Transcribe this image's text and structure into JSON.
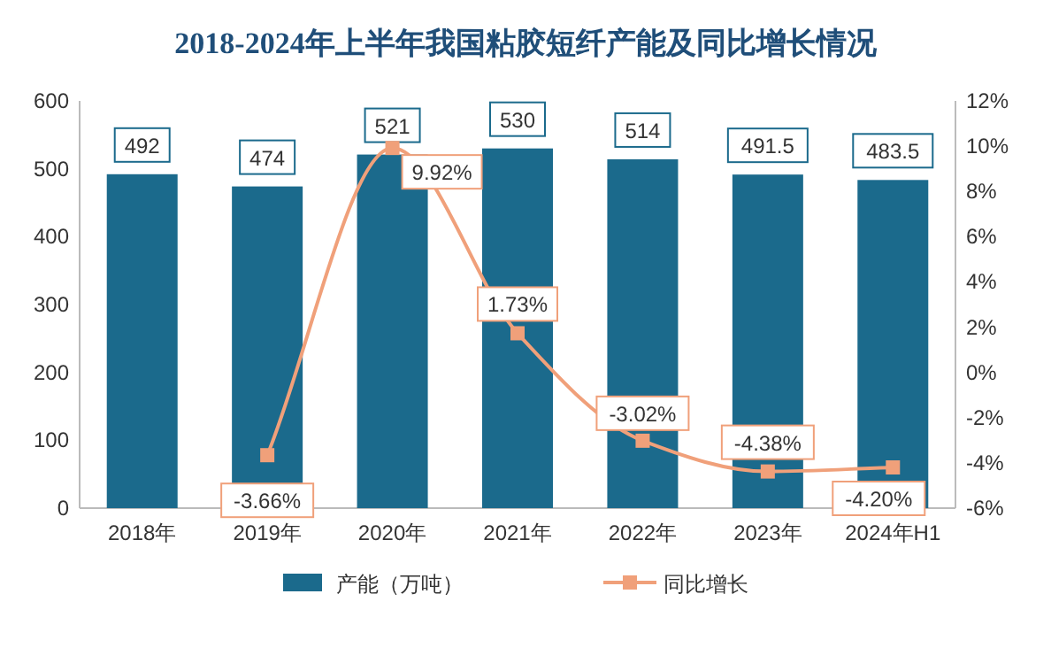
{
  "chart_data": {
    "type": "bar",
    "title": "2018-2024年上半年我国粘胶短纤产能及同比增长情况",
    "categories": [
      "2018年",
      "2019年",
      "2020年",
      "2021年",
      "2022年",
      "2023年",
      "2024年H1"
    ],
    "ylim": [
      0,
      600
    ],
    "yticks": [
      0,
      100,
      200,
      300,
      400,
      500,
      600
    ],
    "y2lim": [
      -6,
      12
    ],
    "y2ticks": [
      {
        "value": -6,
        "label": "-6%"
      },
      {
        "value": -4,
        "label": "-4%"
      },
      {
        "value": -2,
        "label": "-2%"
      },
      {
        "value": 0,
        "label": "0%"
      },
      {
        "value": 2,
        "label": "2%"
      },
      {
        "value": 4,
        "label": "4%"
      },
      {
        "value": 6,
        "label": "6%"
      },
      {
        "value": 8,
        "label": "8%"
      },
      {
        "value": 10,
        "label": "10%"
      },
      {
        "value": 12,
        "label": "12%"
      }
    ],
    "legend": "bottom",
    "marker": "square",
    "series": [
      {
        "name": "产能（万吨）",
        "color": "#1b6a8c",
        "values": [
          492,
          474,
          521,
          530,
          514,
          491.5,
          483.5
        ],
        "value_labels": [
          "492",
          "474",
          "521",
          "530",
          "514",
          "491.5",
          "483.5"
        ]
      },
      {
        "name": "同比增长",
        "type": "line",
        "axis": "y2",
        "color": "#f0a07a",
        "values": [
          null,
          -3.66,
          9.92,
          1.73,
          -3.02,
          -4.38,
          -4.2
        ],
        "value_labels": [
          null,
          "-3.66%",
          "9.92%",
          "1.73%",
          "-3.02%",
          "-4.38%",
          "-4.20%"
        ]
      }
    ]
  }
}
